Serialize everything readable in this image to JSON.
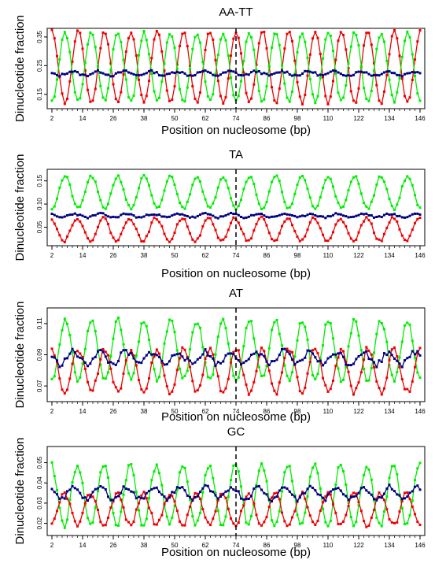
{
  "figure": {
    "colors": {
      "green": "#00ee00",
      "red": "#ee0000",
      "navy": "#000080",
      "frame": "#000000",
      "marker": "#000000"
    }
  },
  "chart_data": [
    {
      "type": "line",
      "title": "AA-TT",
      "xlabel": "Position on nucleosome (bp)",
      "ylabel": "Dinucleotide fraction",
      "xlim": [
        2,
        146
      ],
      "ylim": [
        0.1,
        0.38
      ],
      "x_ticks_labeled": [
        2,
        14,
        26,
        38,
        50,
        62,
        74,
        86,
        98,
        110,
        122,
        134,
        146
      ],
      "y_ticks": [
        0.15,
        0.25,
        0.35
      ],
      "y_tick_labels": [
        "0.15",
        "0.25",
        "0.35"
      ],
      "dashed_line_x": 74,
      "grid": false,
      "series": [
        {
          "color": "red",
          "mean": 0.245,
          "amp": 0.125,
          "phase": 0,
          "noise": 0.006,
          "seed": 11
        },
        {
          "color": "green",
          "mean": 0.245,
          "amp": 0.12,
          "phase": 3.1416,
          "noise": 0.006,
          "seed": 12
        },
        {
          "color": "navy",
          "mean": 0.223,
          "amp": 0.007,
          "phase": 1.5,
          "noise": 0.004,
          "seed": 13
        }
      ]
    },
    {
      "type": "line",
      "title": "TA",
      "xlabel": "Position on nucleosome (bp)",
      "ylabel": "Dinucleotide fraction",
      "xlim": [
        2,
        146
      ],
      "ylim": [
        0.01,
        0.175
      ],
      "x_ticks_labeled": [
        2,
        14,
        26,
        38,
        50,
        62,
        74,
        86,
        98,
        110,
        122,
        134,
        146
      ],
      "y_ticks": [
        0.05,
        0.1,
        0.15
      ],
      "y_tick_labels": [
        "0.05",
        "0.10",
        "0.15"
      ],
      "dashed_line_x": 74,
      "grid": false,
      "series": [
        {
          "color": "green",
          "mean": 0.125,
          "amp": 0.035,
          "phase": 3.1416,
          "noise": 0.003,
          "seed": 21
        },
        {
          "color": "red",
          "mean": 0.045,
          "amp": 0.025,
          "phase": 0.3,
          "noise": 0.003,
          "seed": 22
        },
        {
          "color": "navy",
          "mean": 0.075,
          "amp": 0.004,
          "phase": 1.0,
          "noise": 0.002,
          "seed": 23
        }
      ]
    },
    {
      "type": "line",
      "title": "AT",
      "xlabel": "Position on nucleosome (bp)",
      "ylabel": "Dinucleotide fraction",
      "xlim": [
        2,
        146
      ],
      "ylim": [
        0.06,
        0.12
      ],
      "x_ticks_labeled": [
        2,
        14,
        26,
        38,
        50,
        62,
        74,
        86,
        98,
        110,
        122,
        134,
        146
      ],
      "y_ticks": [
        0.07,
        0.09,
        0.11
      ],
      "y_tick_labels": [
        "0.07",
        "0.09",
        "0.11"
      ],
      "dashed_line_x": 74,
      "grid": false,
      "series": [
        {
          "color": "green",
          "mean": 0.093,
          "amp": 0.019,
          "phase": 3.1416,
          "noise": 0.002,
          "seed": 31
        },
        {
          "color": "red",
          "mean": 0.08,
          "amp": 0.014,
          "phase": 0,
          "noise": 0.002,
          "seed": 32
        },
        {
          "color": "navy",
          "mean": 0.088,
          "amp": 0.004,
          "phase": 1.2,
          "noise": 0.002,
          "seed": 33
        }
      ]
    },
    {
      "type": "line",
      "title": "GC",
      "xlabel": "Position on nucleosome (bp)",
      "ylabel": "Dinucleotide fraction",
      "xlim": [
        2,
        146
      ],
      "ylim": [
        0.014,
        0.058
      ],
      "x_ticks_labeled": [
        2,
        14,
        26,
        38,
        50,
        62,
        74,
        86,
        98,
        110,
        122,
        134,
        146
      ],
      "y_ticks": [
        0.02,
        0.03,
        0.04,
        0.05
      ],
      "y_tick_labels": [
        "0.02",
        "0.03",
        "0.04",
        "0.05"
      ],
      "dashed_line_x": 74,
      "grid": false,
      "series": [
        {
          "color": "green",
          "mean": 0.034,
          "amp": 0.015,
          "phase": 0.2,
          "noise": 0.0015,
          "seed": 41
        },
        {
          "color": "red",
          "mean": 0.027,
          "amp": 0.008,
          "phase": 3.3,
          "noise": 0.0012,
          "seed": 42
        },
        {
          "color": "navy",
          "mean": 0.035,
          "amp": 0.003,
          "phase": 1.0,
          "noise": 0.0012,
          "seed": 43
        }
      ]
    }
  ]
}
